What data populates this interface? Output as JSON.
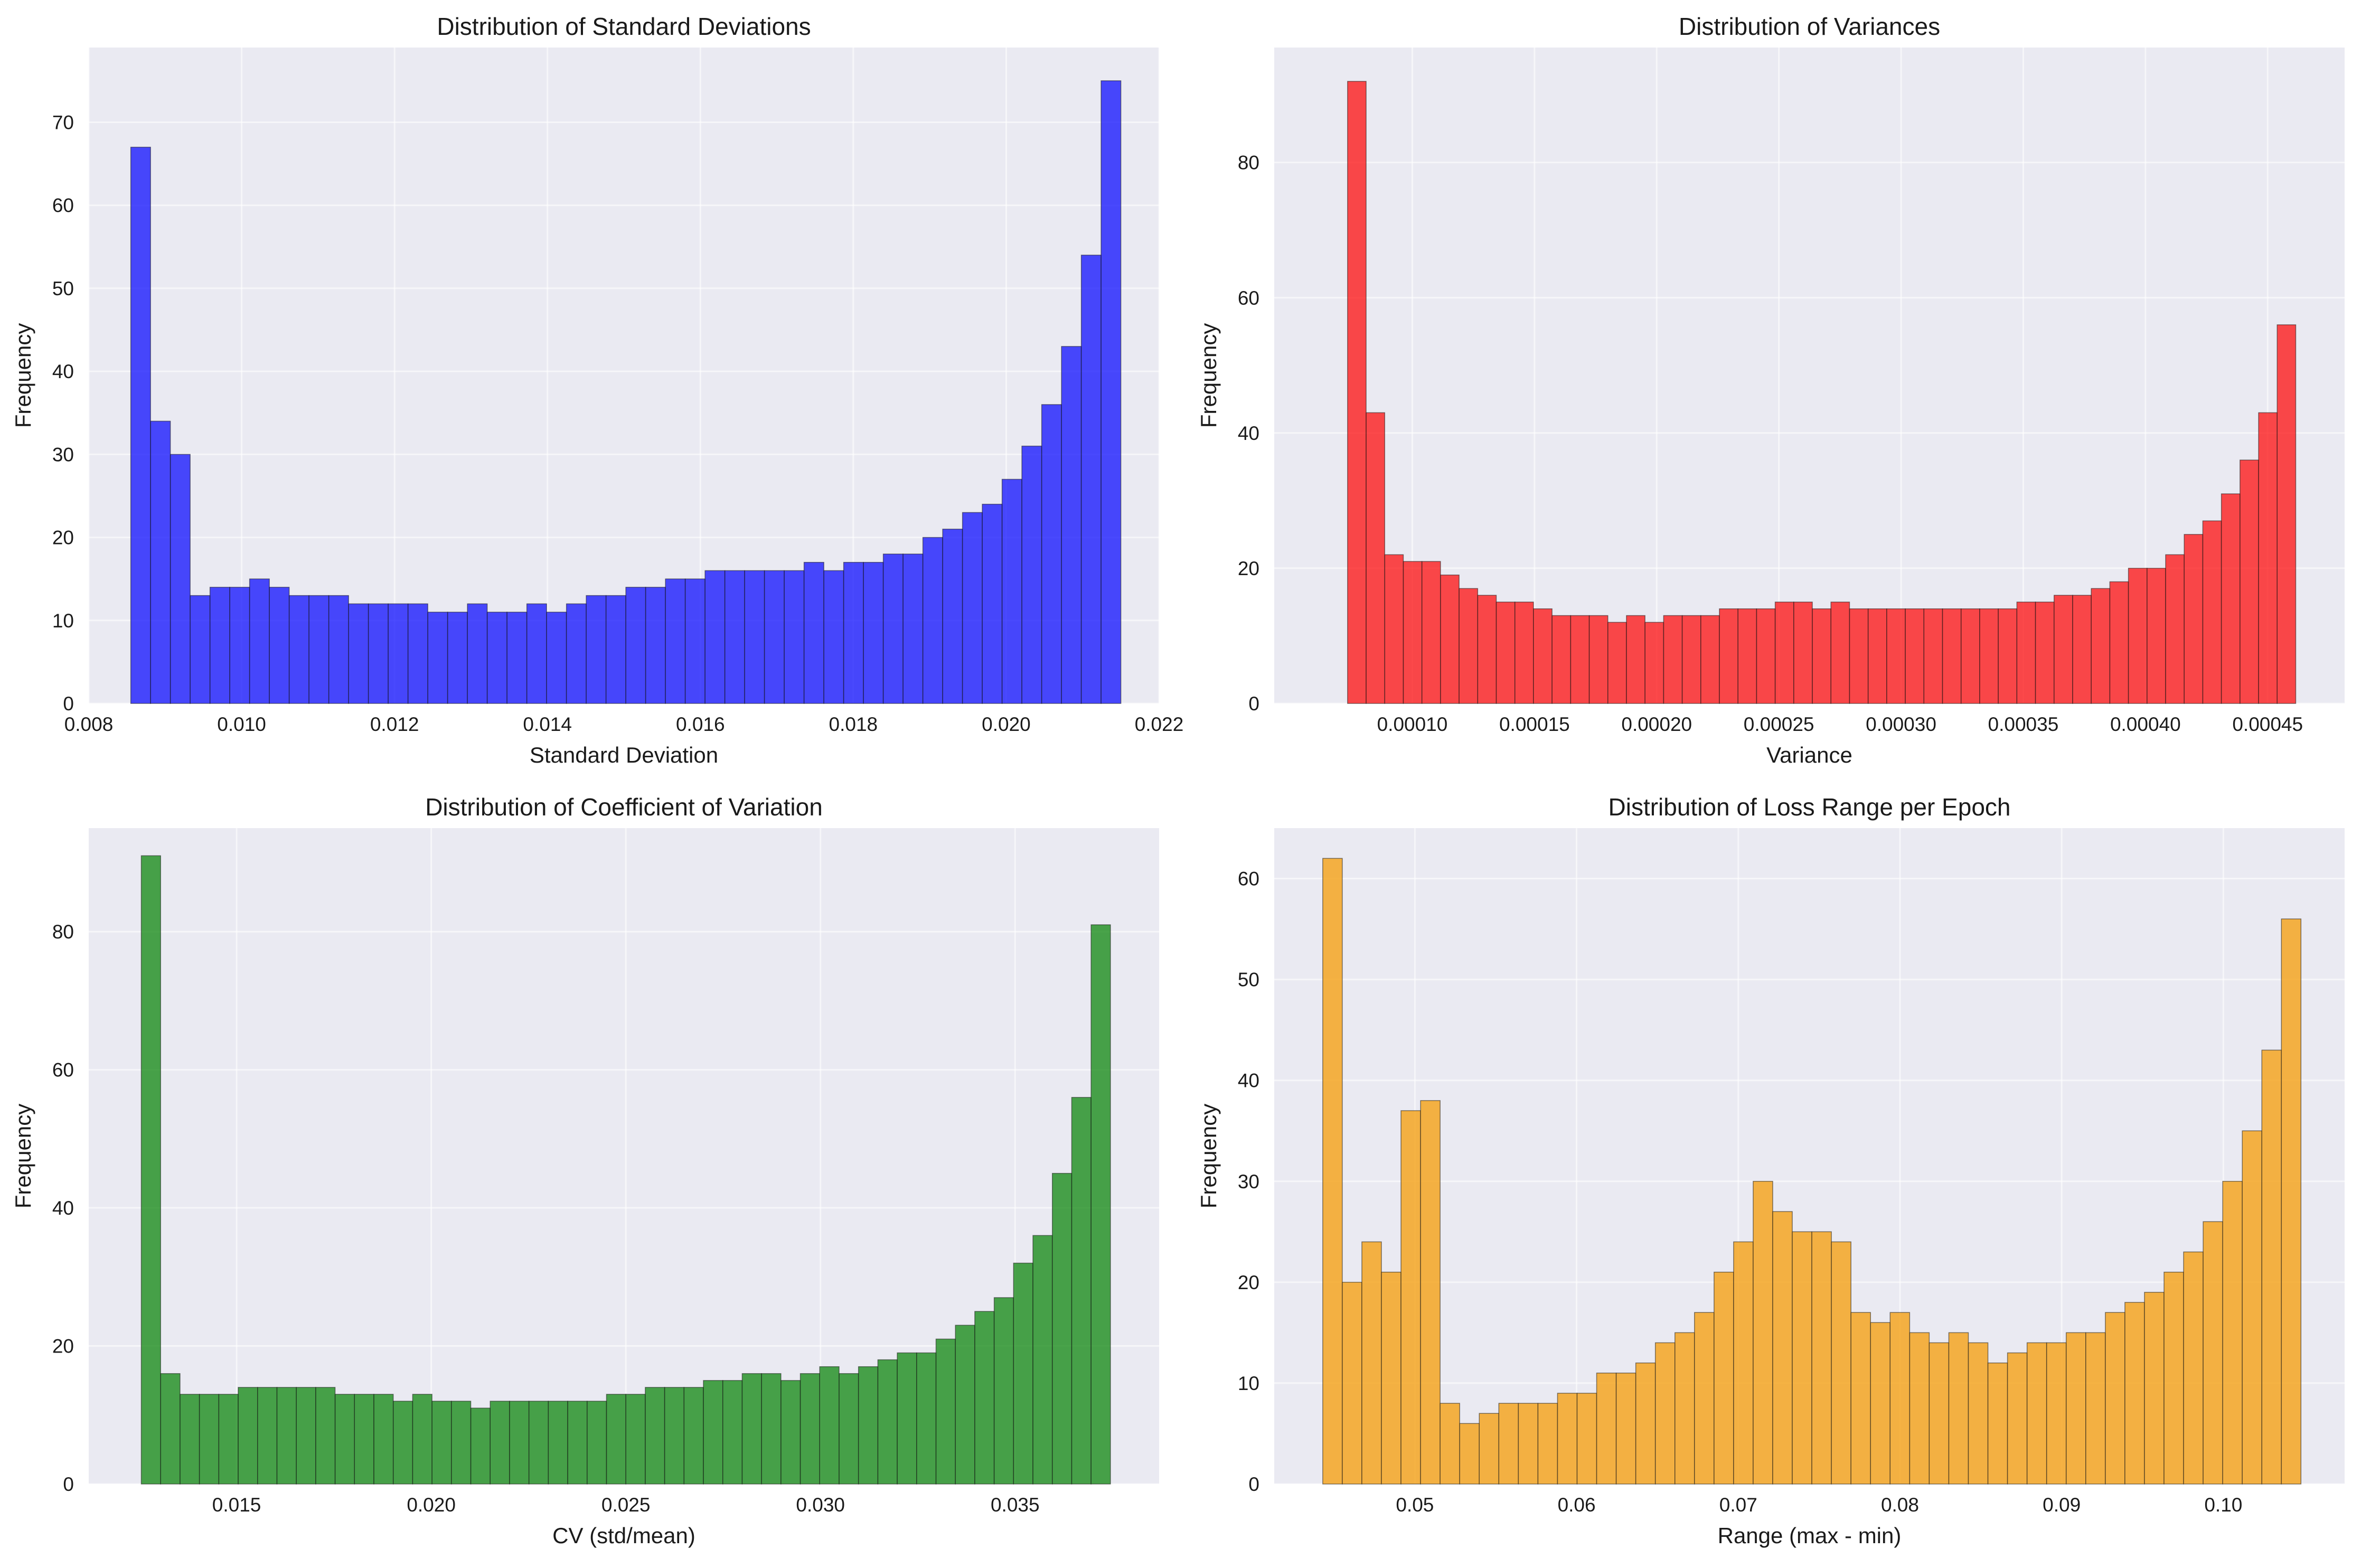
{
  "chart_data": [
    {
      "type": "bar",
      "title": "Distribution of Standard Deviations",
      "xlabel": "Standard Deviation",
      "ylabel": "Frequency",
      "xlim": [
        0.008,
        0.022
      ],
      "ylim": [
        0,
        79
      ],
      "xticks": [
        0.008,
        0.01,
        0.012,
        0.014,
        0.016,
        0.018,
        0.02,
        0.022
      ],
      "xtick_labels": [
        "0.008",
        "0.010",
        "0.012",
        "0.014",
        "0.016",
        "0.018",
        "0.020",
        "0.022"
      ],
      "yticks": [
        0,
        10,
        20,
        30,
        40,
        50,
        60,
        70
      ],
      "yticks_labels": [
        "0",
        "10",
        "20",
        "30",
        "40",
        "50",
        "60",
        "70"
      ],
      "bin_start": 0.00855,
      "bin_end": 0.0215,
      "values": [
        67,
        34,
        30,
        13,
        14,
        14,
        15,
        14,
        13,
        13,
        13,
        12,
        12,
        12,
        12,
        11,
        11,
        12,
        11,
        11,
        12,
        11,
        12,
        13,
        13,
        14,
        14,
        15,
        15,
        16,
        16,
        16,
        16,
        16,
        17,
        16,
        17,
        17,
        18,
        18,
        20,
        21,
        23,
        24,
        27,
        31,
        36,
        43,
        54,
        75
      ],
      "color": "#0000ff",
      "alpha": 0.7,
      "grid": true
    },
    {
      "type": "bar",
      "title": "Distribution of Variances",
      "xlabel": "Variance",
      "ylabel": "Frequency",
      "xlim": [
        4.35e-05,
        0.0004815
      ],
      "ylim": [
        0,
        97
      ],
      "xticks": [
        0.0001,
        0.00015,
        0.0002,
        0.00025,
        0.0003,
        0.00035,
        0.0004,
        0.00045
      ],
      "xtick_labels": [
        "0.00010",
        "0.00015",
        "0.00020",
        "0.00025",
        "0.00030",
        "0.00035",
        "0.00040",
        "0.00045"
      ],
      "yticks": [
        0,
        20,
        40,
        60,
        80
      ],
      "yticks_labels": [
        "0",
        "20",
        "40",
        "60",
        "80"
      ],
      "bin_start": 7.35e-05,
      "bin_end": 0.0004615,
      "values": [
        92,
        43,
        22,
        21,
        21,
        19,
        17,
        16,
        15,
        15,
        14,
        13,
        13,
        13,
        12,
        13,
        12,
        13,
        13,
        13,
        14,
        14,
        14,
        15,
        15,
        14,
        15,
        14,
        14,
        14,
        14,
        14,
        14,
        14,
        14,
        14,
        15,
        15,
        16,
        16,
        17,
        18,
        20,
        20,
        22,
        25,
        27,
        31,
        36,
        43,
        56
      ],
      "color": "#ff0000",
      "alpha": 0.7,
      "grid": true
    },
    {
      "type": "bar",
      "title": "Distribution of Coefficient of Variation",
      "xlabel": "CV (std/mean)",
      "ylabel": "Frequency",
      "xlim": [
        0.0112,
        0.0387
      ],
      "ylim": [
        0,
        95
      ],
      "xticks": [
        0.015,
        0.02,
        0.025,
        0.03,
        0.035
      ],
      "xtick_labels": [
        "0.015",
        "0.020",
        "0.025",
        "0.030",
        "0.035"
      ],
      "yticks": [
        0,
        20,
        40,
        60,
        80
      ],
      "yticks_labels": [
        "0",
        "20",
        "40",
        "60",
        "80"
      ],
      "bin_start": 0.01255,
      "bin_end": 0.03745,
      "values": [
        91,
        16,
        13,
        13,
        13,
        14,
        14,
        14,
        14,
        14,
        13,
        13,
        13,
        12,
        13,
        12,
        12,
        11,
        12,
        12,
        12,
        12,
        12,
        12,
        13,
        13,
        14,
        14,
        14,
        15,
        15,
        16,
        16,
        15,
        16,
        17,
        16,
        17,
        18,
        19,
        19,
        21,
        23,
        25,
        27,
        32,
        36,
        45,
        56,
        81
      ],
      "color": "#008000",
      "alpha": 0.7,
      "grid": true
    },
    {
      "type": "bar",
      "title": "Distribution of Loss Range per Epoch",
      "xlabel": "Range (max - min)",
      "ylabel": "Frequency",
      "xlim": [
        0.0413,
        0.1075
      ],
      "ylim": [
        0,
        65
      ],
      "xticks": [
        0.05,
        0.06,
        0.07,
        0.08,
        0.09,
        0.1
      ],
      "xtick_labels": [
        "0.05",
        "0.06",
        "0.07",
        "0.08",
        "0.09",
        "0.10"
      ],
      "yticks": [
        0,
        10,
        20,
        30,
        40,
        50,
        60
      ],
      "yticks_labels": [
        "0",
        "10",
        "20",
        "30",
        "40",
        "50",
        "60"
      ],
      "bin_start": 0.0443,
      "bin_end": 0.1048,
      "values": [
        62,
        20,
        24,
        21,
        37,
        38,
        8,
        6,
        7,
        8,
        8,
        8,
        9,
        9,
        11,
        11,
        12,
        14,
        15,
        17,
        21,
        24,
        30,
        27,
        25,
        25,
        24,
        17,
        16,
        17,
        15,
        14,
        15,
        14,
        12,
        13,
        14,
        14,
        15,
        15,
        17,
        18,
        19,
        21,
        23,
        26,
        30,
        35,
        43,
        56
      ],
      "color": "#f5a623",
      "alpha": 0.85,
      "grid": true
    }
  ]
}
